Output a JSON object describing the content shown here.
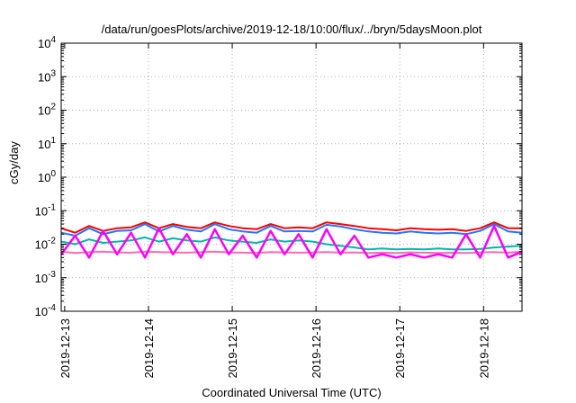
{
  "chart_data": {
    "type": "line",
    "title": "/data/run/goesPlots/archive/2019-12-18/10:00/flux/../bryn/5daysMoon.plot",
    "xlabel": "Coordinated Universal Time (UTC)",
    "ylabel": "cGy/day",
    "yscale": "log",
    "ylim": [
      0.0001,
      10000
    ],
    "y_ticks": [
      {
        "value": 0.0001,
        "base": "10",
        "exp": "-4"
      },
      {
        "value": 0.001,
        "base": "10",
        "exp": "-3"
      },
      {
        "value": 0.01,
        "base": "10",
        "exp": "-2"
      },
      {
        "value": 0.1,
        "base": "10",
        "exp": "-1"
      },
      {
        "value": 1,
        "base": "10",
        "exp": "0"
      },
      {
        "value": 10,
        "base": "10",
        "exp": "1"
      },
      {
        "value": 100,
        "base": "10",
        "exp": "2"
      },
      {
        "value": 1000,
        "base": "10",
        "exp": "3"
      },
      {
        "value": 10000,
        "base": "10",
        "exp": "4"
      }
    ],
    "xlim": [
      "2019-12-12T23:00",
      "2019-12-18T11:00"
    ],
    "x_ticks": [
      "2019-12-13",
      "2019-12-14",
      "2019-12-15",
      "2019-12-16",
      "2019-12-17",
      "2019-12-18"
    ],
    "grid": true,
    "x": [
      "2019-12-12T23:00",
      "2019-12-13T03:00",
      "2019-12-13T07:00",
      "2019-12-13T11:00",
      "2019-12-13T15:00",
      "2019-12-13T19:00",
      "2019-12-13T23:00",
      "2019-12-14T03:00",
      "2019-12-14T07:00",
      "2019-12-14T11:00",
      "2019-12-14T15:00",
      "2019-12-14T19:00",
      "2019-12-14T23:00",
      "2019-12-15T03:00",
      "2019-12-15T07:00",
      "2019-12-15T11:00",
      "2019-12-15T15:00",
      "2019-12-15T19:00",
      "2019-12-15T23:00",
      "2019-12-16T03:00",
      "2019-12-16T07:00",
      "2019-12-16T11:00",
      "2019-12-16T15:00",
      "2019-12-16T19:00",
      "2019-12-16T23:00",
      "2019-12-17T03:00",
      "2019-12-17T07:00",
      "2019-12-17T11:00",
      "2019-12-17T15:00",
      "2019-12-17T19:00",
      "2019-12-17T23:00",
      "2019-12-18T03:00",
      "2019-12-18T07:00",
      "2019-12-18T11:00"
    ],
    "series": [
      {
        "color": "#ff0000",
        "values": [
          0.03,
          0.022,
          0.035,
          0.025,
          0.03,
          0.032,
          0.045,
          0.03,
          0.04,
          0.033,
          0.03,
          0.045,
          0.035,
          0.03,
          0.028,
          0.04,
          0.03,
          0.032,
          0.03,
          0.045,
          0.04,
          0.035,
          0.03,
          0.028,
          0.026,
          0.03,
          0.028,
          0.027,
          0.028,
          0.025,
          0.03,
          0.045,
          0.03,
          0.03
        ]
      },
      {
        "color": "#1f77ff",
        "values": [
          0.022,
          0.018,
          0.03,
          0.02,
          0.025,
          0.026,
          0.04,
          0.024,
          0.035,
          0.027,
          0.024,
          0.04,
          0.028,
          0.024,
          0.022,
          0.035,
          0.024,
          0.025,
          0.024,
          0.038,
          0.034,
          0.028,
          0.024,
          0.022,
          0.021,
          0.024,
          0.022,
          0.021,
          0.022,
          0.02,
          0.025,
          0.04,
          0.024,
          0.022
        ]
      },
      {
        "color": "#00b5ad",
        "values": [
          0.012,
          0.01,
          0.014,
          0.011,
          0.012,
          0.013,
          0.016,
          0.012,
          0.015,
          0.013,
          0.012,
          0.016,
          0.013,
          0.012,
          0.011,
          0.014,
          0.012,
          0.013,
          0.012,
          0.01,
          0.009,
          0.008,
          0.007,
          0.0075,
          0.007,
          0.0072,
          0.007,
          0.0075,
          0.007,
          0.007,
          0.0072,
          0.008,
          0.0085,
          0.009
        ]
      },
      {
        "color": "#ff69b4",
        "values": [
          0.006,
          0.0055,
          0.0058,
          0.006,
          0.0057,
          0.0056,
          0.006,
          0.0058,
          0.0057,
          0.0056,
          0.0058,
          0.006,
          0.0057,
          0.0056,
          0.0055,
          0.0058,
          0.0057,
          0.0056,
          0.0057,
          0.0058,
          0.0056,
          0.0057,
          0.0055,
          0.0056,
          0.0055,
          0.0057,
          0.0056,
          0.0055,
          0.0056,
          0.0055,
          0.0057,
          0.0058,
          0.0056,
          0.006
        ]
      },
      {
        "color": "#ff00ff",
        "values": [
          0.005,
          0.018,
          0.004,
          0.025,
          0.005,
          0.022,
          0.004,
          0.03,
          0.005,
          0.02,
          0.004,
          0.028,
          0.005,
          0.018,
          0.004,
          0.025,
          0.005,
          0.02,
          0.004,
          0.028,
          0.005,
          0.018,
          0.004,
          0.005,
          0.004,
          0.005,
          0.004,
          0.005,
          0.004,
          0.02,
          0.004,
          0.035,
          0.004,
          0.006
        ]
      }
    ]
  }
}
